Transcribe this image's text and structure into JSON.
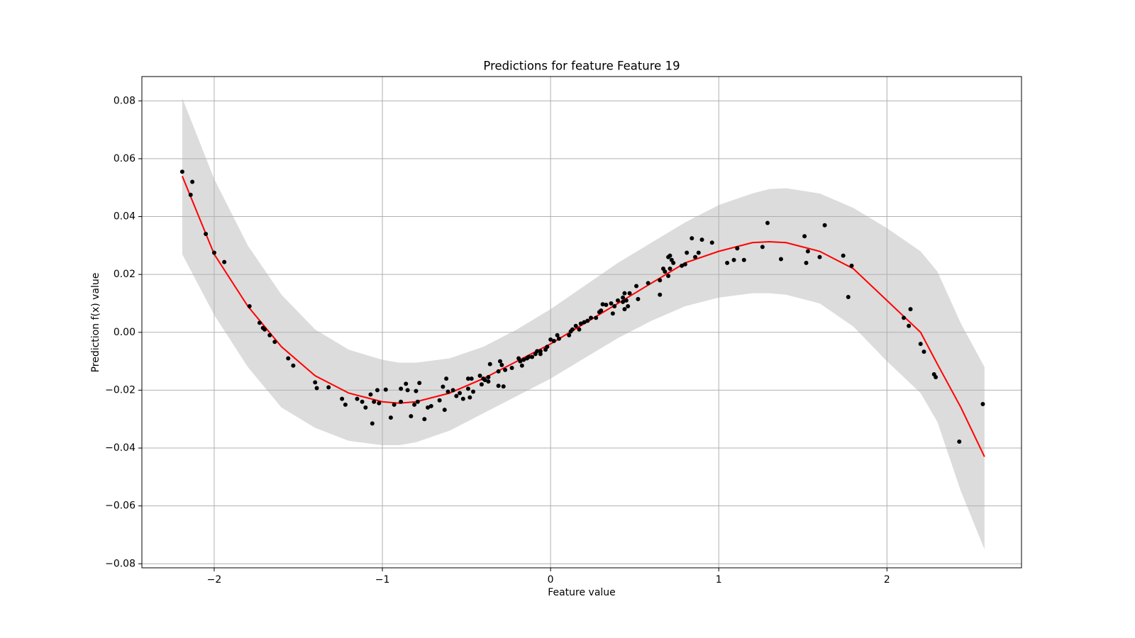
{
  "chart_data": {
    "type": "scatter",
    "title": "Predictions for feature Feature 19",
    "x_label": "Feature value",
    "y_label": "Prediction f(x) value",
    "xlim": [
      -2.43,
      2.8
    ],
    "ylim": [
      -0.0814,
      0.0884
    ],
    "xticks": [
      {
        "value": -2,
        "label": "−2"
      },
      {
        "value": -1,
        "label": "−1"
      },
      0,
      1,
      2
    ],
    "yticks": [
      {
        "value": -0.08,
        "label": "−0.08"
      },
      {
        "value": -0.06,
        "label": "−0.06"
      },
      {
        "value": -0.04,
        "label": "−0.04"
      },
      {
        "value": -0.02,
        "label": "−0.02"
      },
      {
        "value": 0,
        "label": "0.00"
      },
      {
        "value": 0.02,
        "label": "0.02"
      },
      {
        "value": 0.04,
        "label": "0.04"
      },
      {
        "value": 0.06,
        "label": "0.06"
      },
      {
        "value": 0.08,
        "label": "0.08"
      }
    ],
    "grid": true,
    "fit": {
      "color": "#ff0000",
      "band_color": "#dcdcdc",
      "x": [
        -2.19,
        -2.0,
        -1.8,
        -1.6,
        -1.4,
        -1.2,
        -1.0,
        -0.9,
        -0.8,
        -0.6,
        -0.4,
        -0.2,
        0,
        0.2,
        0.4,
        0.6,
        0.8,
        1.0,
        1.2,
        1.3,
        1.4,
        1.6,
        1.8,
        2.0,
        2.2,
        2.3,
        2.44,
        2.58
      ],
      "y": [
        0.054,
        0.027,
        0.009,
        -0.005,
        -0.015,
        -0.021,
        -0.024,
        -0.0245,
        -0.024,
        -0.021,
        -0.016,
        -0.01,
        -0.004,
        0.003,
        0.01,
        0.017,
        0.024,
        0.028,
        0.031,
        0.0313,
        0.031,
        0.028,
        0.022,
        0.011,
        0.0,
        -0.011,
        -0.026,
        -0.043
      ],
      "upper": [
        0.081,
        0.053,
        0.03,
        0.013,
        0.001,
        -0.006,
        -0.0095,
        -0.0105,
        -0.0105,
        -0.009,
        -0.005,
        0.001,
        0.008,
        0.016,
        0.024,
        0.031,
        0.038,
        0.044,
        0.048,
        0.0495,
        0.0498,
        0.048,
        0.043,
        0.036,
        0.028,
        0.021,
        0.003,
        -0.012
      ],
      "lower": [
        0.027,
        0.006,
        -0.012,
        -0.026,
        -0.033,
        -0.0375,
        -0.039,
        -0.039,
        -0.038,
        -0.034,
        -0.028,
        -0.022,
        -0.016,
        -0.009,
        -0.002,
        0.004,
        0.009,
        0.012,
        0.0135,
        0.0135,
        0.013,
        0.01,
        0.002,
        -0.01,
        -0.021,
        -0.031,
        -0.055,
        -0.075
      ]
    },
    "points": {
      "color": "#000000",
      "x": [
        -2.19,
        -2.13,
        -2.14,
        -2.05,
        -2.0,
        -1.94,
        -1.79,
        -1.73,
        -1.71,
        -1.7,
        -1.67,
        -1.64,
        -1.56,
        -1.53,
        -1.4,
        -1.39,
        -1.32,
        -1.24,
        -1.22,
        -1.15,
        -1.12,
        -1.1,
        -1.07,
        -1.06,
        -1.05,
        -1.03,
        -1.02,
        -0.98,
        -0.95,
        -0.93,
        -0.89,
        -0.89,
        -0.86,
        -0.85,
        -0.83,
        -0.81,
        -0.8,
        -0.79,
        -0.78,
        -0.75,
        -0.73,
        -0.71,
        -0.66,
        -0.64,
        -0.63,
        -0.62,
        -0.61,
        -0.58,
        -0.56,
        -0.54,
        -0.52,
        -0.49,
        -0.49,
        -0.48,
        -0.47,
        -0.46,
        -0.42,
        -0.41,
        -0.4,
        -0.39,
        -0.37,
        -0.37,
        -0.36,
        -0.31,
        -0.31,
        -0.3,
        -0.29,
        -0.28,
        -0.27,
        -0.23,
        -0.19,
        -0.18,
        -0.17,
        -0.16,
        -0.14,
        -0.13,
        -0.11,
        -0.09,
        -0.08,
        -0.06,
        -0.06,
        -0.03,
        -0.02,
        0.0,
        0.02,
        0.04,
        0.05,
        0.11,
        0.12,
        0.13,
        0.15,
        0.17,
        0.18,
        0.2,
        0.22,
        0.24,
        0.27,
        0.29,
        0.3,
        0.31,
        0.33,
        0.36,
        0.37,
        0.38,
        0.4,
        0.43,
        0.43,
        0.44,
        0.44,
        0.45,
        0.46,
        0.47,
        0.52,
        0.51,
        0.58,
        0.65,
        0.65,
        0.67,
        0.68,
        0.7,
        0.7,
        0.71,
        0.72,
        0.73,
        0.71,
        0.78,
        0.8,
        0.81,
        0.84,
        0.86,
        0.88,
        0.9,
        0.96,
        1.05,
        1.09,
        1.11,
        1.15,
        1.26,
        1.29,
        1.37,
        1.51,
        1.52,
        1.53,
        1.6,
        1.63,
        1.74,
        1.77,
        1.79,
        2.1,
        2.13,
        2.14,
        2.2,
        2.22,
        2.28,
        2.29,
        2.43,
        2.57
      ],
      "y": [
        0.0555,
        0.052,
        0.0475,
        0.034,
        0.0275,
        0.0243,
        0.009,
        0.0033,
        0.0015,
        0.001,
        -0.001,
        -0.0033,
        -0.009,
        -0.0115,
        -0.0173,
        -0.0193,
        -0.019,
        -0.023,
        -0.025,
        -0.023,
        -0.024,
        -0.026,
        -0.0215,
        -0.0315,
        -0.024,
        -0.02,
        -0.0245,
        -0.0198,
        -0.0295,
        -0.025,
        -0.0195,
        -0.024,
        -0.0178,
        -0.02,
        -0.029,
        -0.025,
        -0.0203,
        -0.024,
        -0.0175,
        -0.03,
        -0.026,
        -0.0255,
        -0.0235,
        -0.0188,
        -0.0268,
        -0.016,
        -0.0205,
        -0.02,
        -0.022,
        -0.021,
        -0.023,
        -0.0195,
        -0.016,
        -0.0225,
        -0.016,
        -0.0205,
        -0.015,
        -0.018,
        -0.016,
        -0.0165,
        -0.0155,
        -0.017,
        -0.011,
        -0.0135,
        -0.0185,
        -0.01,
        -0.0113,
        -0.0187,
        -0.013,
        -0.0123,
        -0.009,
        -0.01,
        -0.0115,
        -0.0095,
        -0.009,
        -0.0085,
        -0.0085,
        -0.0075,
        -0.0065,
        -0.0065,
        -0.0075,
        -0.006,
        -0.005,
        -0.0025,
        -0.003,
        -0.001,
        -0.0022,
        -0.001,
        0.0003,
        0.001,
        0.0022,
        0.001,
        0.003,
        0.0035,
        0.004,
        0.005,
        0.005,
        0.007,
        0.0075,
        0.0097,
        0.0095,
        0.01,
        0.0065,
        0.009,
        0.011,
        0.0105,
        0.012,
        0.0135,
        0.008,
        0.011,
        0.009,
        0.0135,
        0.0115,
        0.016,
        0.017,
        0.018,
        0.013,
        0.022,
        0.021,
        0.0195,
        0.026,
        0.0265,
        0.025,
        0.024,
        0.022,
        0.023,
        0.0235,
        0.0275,
        0.0325,
        0.026,
        0.0275,
        0.032,
        0.031,
        0.024,
        0.025,
        0.029,
        0.025,
        0.0295,
        0.0378,
        0.0253,
        0.0332,
        0.024,
        0.028,
        0.026,
        0.037,
        0.0265,
        0.0122,
        0.023,
        0.005,
        0.0022,
        0.008,
        -0.004,
        -0.0067,
        -0.0145,
        -0.0155,
        -0.0378,
        -0.0248
      ]
    }
  }
}
